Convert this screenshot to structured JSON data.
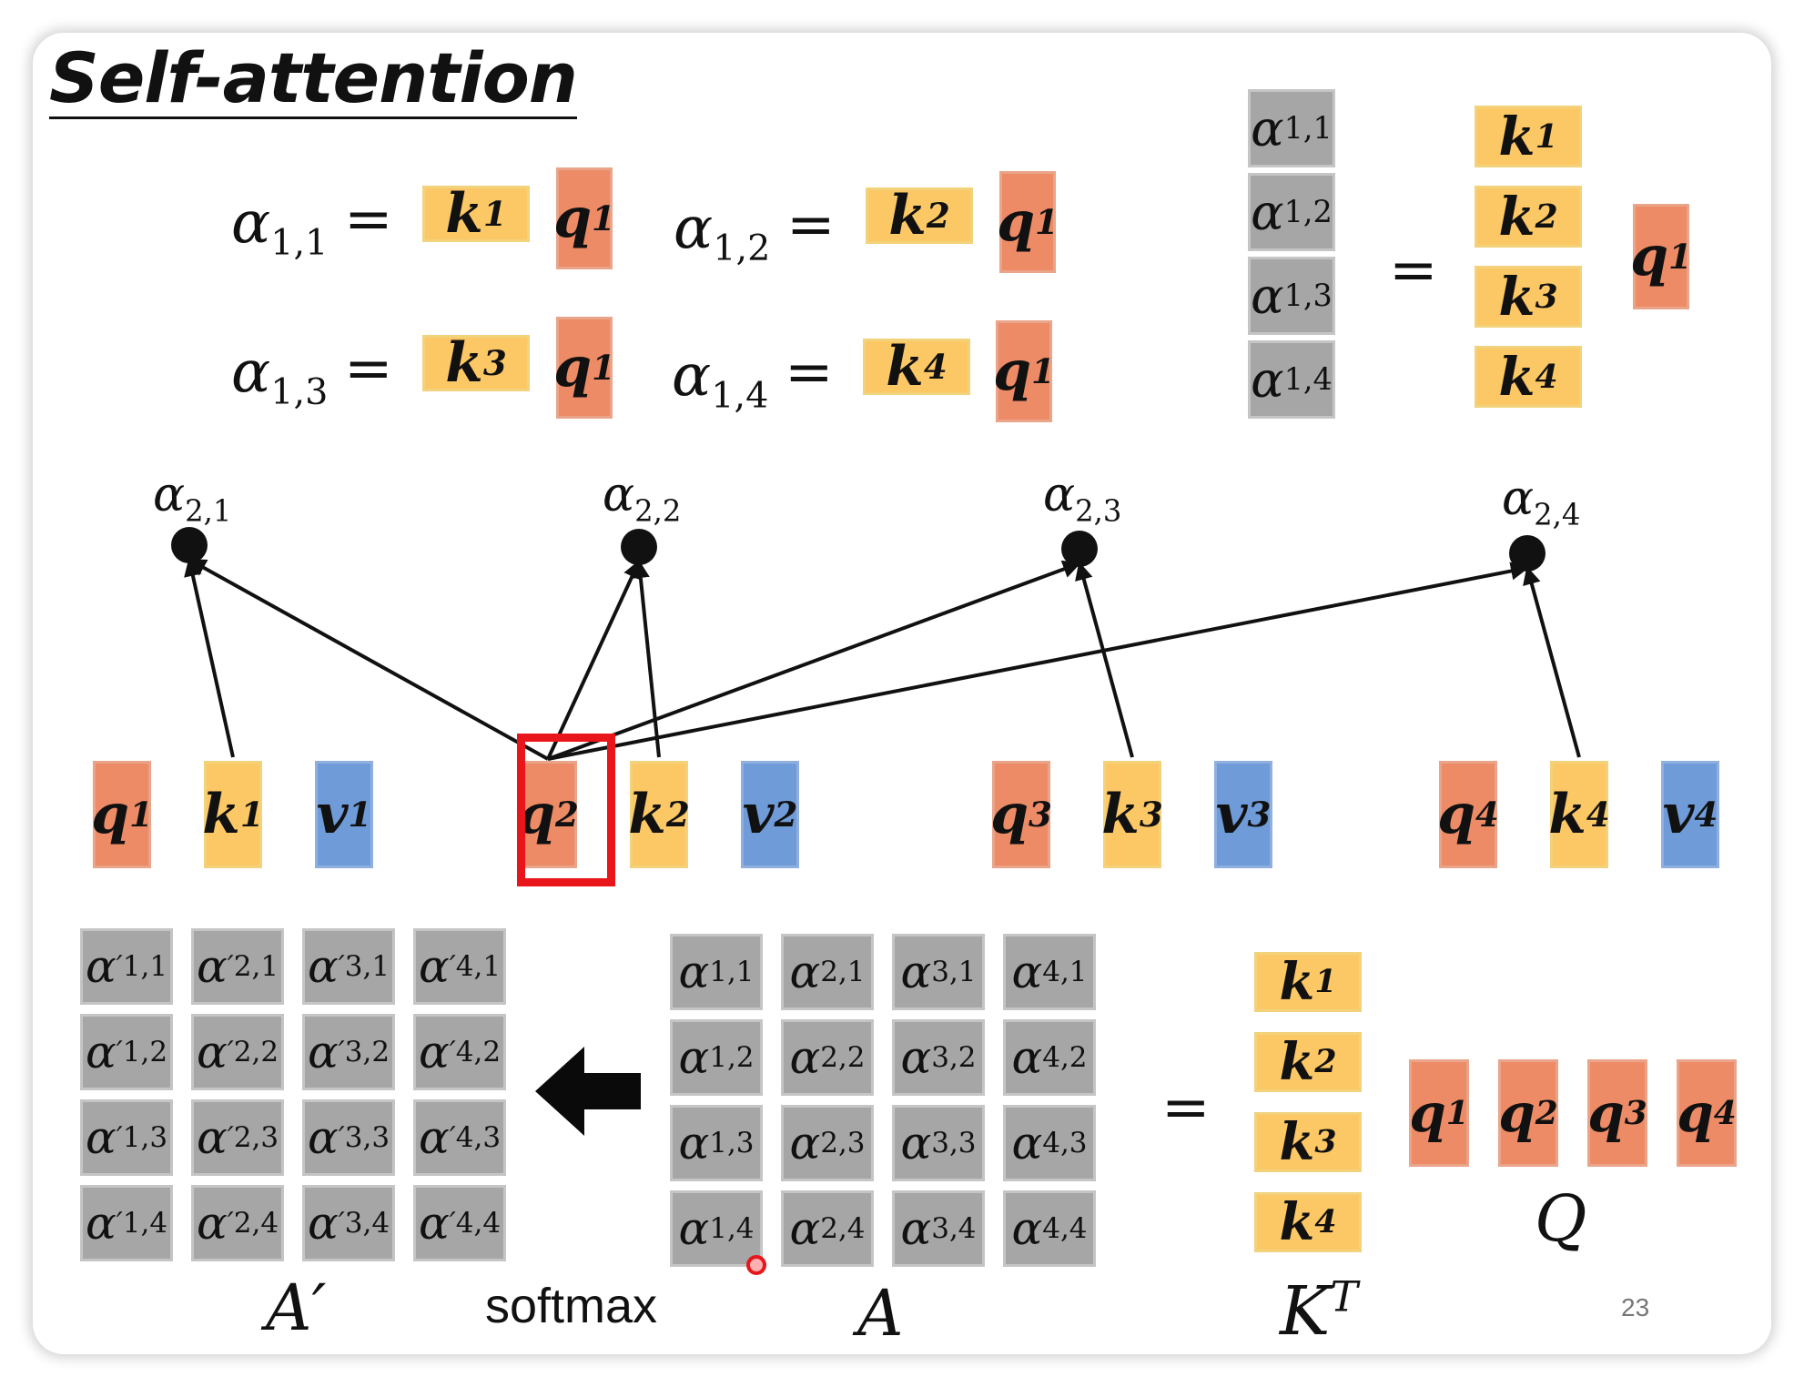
{
  "title": "Self-attention",
  "symbols": {
    "alpha": "α",
    "equals": "=",
    "prime": "′",
    "k": "k",
    "q": "q",
    "v": "v"
  },
  "equations": [
    {
      "lhs_sub": "1,1",
      "k_sup": "1",
      "q_sup": "1"
    },
    {
      "lhs_sub": "1,2",
      "k_sup": "2",
      "q_sup": "1"
    },
    {
      "lhs_sub": "1,3",
      "k_sup": "3",
      "q_sup": "1"
    },
    {
      "lhs_sub": "1,4",
      "k_sup": "4",
      "q_sup": "1"
    }
  ],
  "top_right": {
    "alpha_subs": [
      "1,1",
      "1,2",
      "1,3",
      "1,4"
    ],
    "k_sups": [
      "1",
      "2",
      "3",
      "4"
    ],
    "q_sup": "1"
  },
  "middle": {
    "node_subs": [
      "2,1",
      "2,2",
      "2,3",
      "2,4"
    ],
    "groups": [
      {
        "q": "1",
        "k": "1",
        "v": "1"
      },
      {
        "q": "2",
        "k": "2",
        "v": "2"
      },
      {
        "q": "3",
        "k": "3",
        "v": "3"
      },
      {
        "q": "4",
        "k": "4",
        "v": "4"
      }
    ]
  },
  "bottom": {
    "a_prime_label": "A′",
    "softmax_label": "softmax",
    "a_label": "A",
    "kt_label": "K",
    "kt_sup": "T",
    "q_label": "Q",
    "matrix_subs": [
      [
        "1,1",
        "2,1",
        "3,1",
        "4,1"
      ],
      [
        "1,2",
        "2,2",
        "3,2",
        "4,2"
      ],
      [
        "1,3",
        "2,3",
        "3,3",
        "4,3"
      ],
      [
        "1,4",
        "2,4",
        "3,4",
        "4,4"
      ]
    ],
    "kt_sups": [
      "1",
      "2",
      "3",
      "4"
    ],
    "q_sups": [
      "1",
      "2",
      "3",
      "4"
    ]
  },
  "page_number": "23",
  "colors": {
    "key": "#fcc866",
    "query": "#ec8b66",
    "value": "#6f9bd8",
    "attention": "#a6a6a6",
    "highlight": "#e8151a"
  }
}
